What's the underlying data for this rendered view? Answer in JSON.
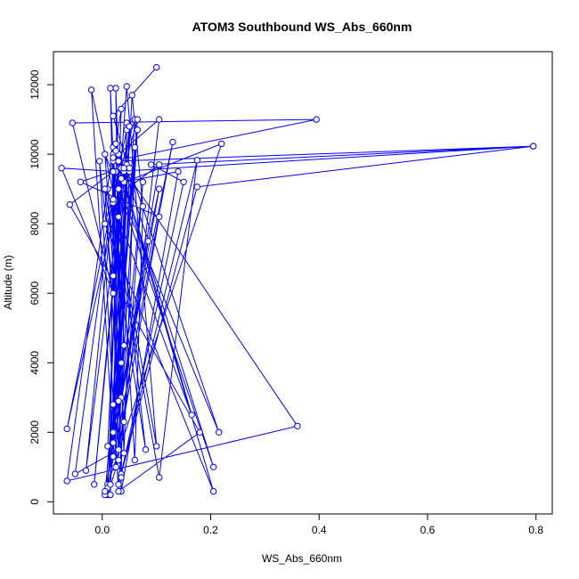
{
  "chart_data": {
    "type": "line",
    "title": "ATOM3 Southbound WS_Abs_660nm",
    "xlabel": "WS_Abs_660nm",
    "ylabel": "Altitude (m)",
    "xlim": [
      -0.09,
      0.83
    ],
    "ylim": [
      -350,
      12950
    ],
    "xticks": [
      0.0,
      0.2,
      0.4,
      0.6,
      0.8
    ],
    "xtick_labels": [
      "0.0",
      "0.2",
      "0.4",
      "0.6",
      "0.8"
    ],
    "yticks": [
      0,
      2000,
      4000,
      6000,
      8000,
      10000,
      12000
    ],
    "ytick_labels": [
      "0",
      "2000",
      "4000",
      "6000",
      "8000",
      "10000",
      "12000"
    ],
    "grid": false,
    "legend": "none",
    "marker": "open-circle",
    "series": [
      {
        "color": "#0000ff",
        "points": [
          [
            0.1,
            12500
          ],
          [
            0.02,
            11100
          ],
          [
            0.05,
            9500
          ],
          [
            0.03,
            1200
          ],
          [
            0.01,
            200
          ],
          [
            0.035,
            11300
          ],
          [
            0.02,
            9800
          ],
          [
            0.395,
            11000
          ],
          [
            -0.055,
            10900
          ],
          [
            0.02,
            6000
          ],
          [
            -0.075,
            9600
          ],
          [
            0.025,
            9500
          ],
          [
            0.795,
            10230
          ],
          [
            0.09,
            9700
          ],
          [
            0.15,
            9200
          ],
          [
            0.035,
            800
          ],
          [
            0.175,
            9830
          ],
          [
            0.105,
            700
          ],
          [
            0.01,
            9000
          ],
          [
            0.22,
            10300
          ],
          [
            0.01,
            500
          ],
          [
            0.065,
            10700
          ],
          [
            0.035,
            3000
          ],
          [
            0.075,
            9200
          ],
          [
            0.03,
            500
          ],
          [
            0.175,
            9060
          ],
          [
            0.795,
            10230
          ],
          [
            0.03,
            9800
          ],
          [
            0.36,
            2180
          ],
          [
            -0.065,
            600
          ],
          [
            0.02,
            10200
          ],
          [
            0.205,
            300
          ],
          [
            0.005,
            8000
          ],
          [
            0.06,
            11000
          ],
          [
            0.02,
            1300
          ],
          [
            0.045,
            9700
          ],
          [
            0.01,
            400
          ],
          [
            0.13,
            10350
          ],
          [
            0.02,
            2000
          ],
          [
            0.065,
            11000
          ],
          [
            0.03,
            9000
          ],
          [
            0.205,
            1000
          ],
          [
            0.04,
            9200
          ],
          [
            0.14,
            9500
          ],
          [
            0.035,
            300
          ],
          [
            0.025,
            11900
          ],
          [
            0.04,
            4500
          ],
          [
            0.02,
            10000
          ],
          [
            0.015,
            200
          ],
          [
            0.035,
            9600
          ],
          [
            -0.04,
            9200
          ],
          [
            0.105,
            8200
          ],
          [
            0.03,
            1500
          ],
          [
            -0.05,
            800
          ],
          [
            0.03,
            10000
          ],
          [
            0.105,
            11000
          ],
          [
            0.04,
            2300
          ],
          [
            0.005,
            10000
          ],
          [
            0.215,
            2000
          ],
          [
            0.05,
            9600
          ],
          [
            0.02,
            6500
          ],
          [
            0.045,
            11950
          ],
          [
            0.1,
            1600
          ],
          [
            0.02,
            8600
          ],
          [
            0.165,
            2500
          ],
          [
            0.025,
            10100
          ],
          [
            0.06,
            1200
          ],
          [
            0.075,
            8500
          ],
          [
            0.055,
            11700
          ],
          [
            0.015,
            500
          ],
          [
            0.04,
            9500
          ],
          [
            -0.065,
            2100
          ],
          [
            0.045,
            10700
          ],
          [
            0.03,
            1200
          ],
          [
            0.015,
            11900
          ],
          [
            0.035,
            4000
          ],
          [
            -0.005,
            9800
          ],
          [
            0.03,
            300
          ],
          [
            0.18,
            2000
          ],
          [
            -0.06,
            8550
          ],
          [
            0.02,
            9500
          ],
          [
            0.035,
            700
          ],
          [
            0.045,
            10900
          ],
          [
            0.025,
            1000
          ],
          [
            0.02,
            9900
          ],
          [
            0.08,
            1500
          ],
          [
            0.005,
            9000
          ],
          [
            0.03,
            2900
          ],
          [
            0.05,
            10800
          ],
          [
            -0.015,
            500
          ],
          [
            0.04,
            9600
          ],
          [
            -0.03,
            900
          ],
          [
            0.02,
            8700
          ],
          [
            0.105,
            9700
          ],
          [
            0.005,
            200
          ],
          [
            0.06,
            10200
          ],
          [
            0.04,
            1400
          ],
          [
            0.025,
            10300
          ],
          [
            0.085,
            7500
          ],
          [
            0.02,
            1700
          ],
          [
            -0.02,
            11850
          ],
          [
            0.03,
            8200
          ],
          [
            0.01,
            1600
          ],
          [
            0.035,
            9300
          ],
          [
            0.02,
            2800
          ],
          [
            0.105,
            9000
          ],
          [
            0.005,
            300
          ]
        ]
      }
    ]
  }
}
